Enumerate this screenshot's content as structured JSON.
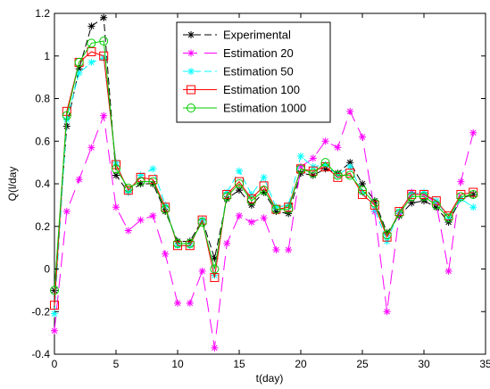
{
  "chart_data": {
    "type": "line",
    "xlabel": "t(day)",
    "ylabel": "Q(l/day",
    "xlim": [
      0,
      35
    ],
    "ylim": [
      -0.4,
      1.2
    ],
    "xticks": [
      0,
      5,
      10,
      15,
      20,
      25,
      30,
      35
    ],
    "yticks": [
      -0.4,
      -0.2,
      0,
      0.2,
      0.4,
      0.6,
      0.8,
      1,
      1.2
    ],
    "xtick_labels": [
      "0",
      "5",
      "10",
      "15",
      "20",
      "25",
      "30",
      "35"
    ],
    "ytick_labels": [
      "-0.4",
      "-0.2",
      "0",
      "0.2",
      "0.4",
      "0.6",
      "0.8",
      "1",
      "1.2"
    ],
    "grid": false,
    "legend_position": "top-center",
    "x": [
      0,
      1,
      2,
      3,
      4,
      5,
      6,
      7,
      8,
      9,
      10,
      11,
      12,
      13,
      14,
      15,
      16,
      17,
      18,
      19,
      20,
      21,
      22,
      23,
      24,
      25,
      26,
      27,
      28,
      29,
      30,
      31,
      32,
      33,
      34
    ],
    "series": [
      {
        "name": "Experimental",
        "color": "#000000",
        "marker": "asterisk",
        "dash": "8,4",
        "values": [
          -0.1,
          0.67,
          0.94,
          1.14,
          1.18,
          0.44,
          0.36,
          0.4,
          0.4,
          0.27,
          0.13,
          0.13,
          0.23,
          0.05,
          0.33,
          0.37,
          0.3,
          0.36,
          0.27,
          0.26,
          0.45,
          0.44,
          0.47,
          0.45,
          0.5,
          0.4,
          0.32,
          0.17,
          0.25,
          0.31,
          0.32,
          0.29,
          0.22,
          0.33,
          0.35
        ]
      },
      {
        "name": "Estimation 20",
        "color": "#ff00ff",
        "marker": "asterisk",
        "dash": "16,8",
        "values": [
          -0.29,
          0.27,
          0.42,
          0.57,
          0.72,
          0.29,
          0.18,
          0.23,
          0.25,
          0.07,
          -0.16,
          -0.16,
          -0.01,
          -0.37,
          0.12,
          0.25,
          0.22,
          0.24,
          0.09,
          0.09,
          0.48,
          0.52,
          0.6,
          0.57,
          0.74,
          0.62,
          0.27,
          -0.2,
          0.26,
          0.36,
          0.35,
          0.31,
          -0.01,
          0.41,
          0.64
        ]
      },
      {
        "name": "Estimation 50",
        "color": "#00ffff",
        "marker": "asterisk",
        "dash": "8,4",
        "values": [
          -0.21,
          0.7,
          0.92,
          0.97,
          0.99,
          0.5,
          0.36,
          0.44,
          0.47,
          0.3,
          0.11,
          0.11,
          0.23,
          -0.03,
          0.36,
          0.46,
          0.35,
          0.43,
          0.29,
          0.3,
          0.53,
          0.48,
          0.49,
          0.44,
          0.48,
          0.36,
          0.28,
          0.13,
          0.27,
          0.35,
          0.36,
          0.32,
          0.24,
          0.33,
          0.29
        ]
      },
      {
        "name": "Estimation 100",
        "color": "#ff0000",
        "marker": "square",
        "dash": "",
        "values": [
          -0.17,
          0.74,
          0.97,
          1.02,
          1.0,
          0.49,
          0.37,
          0.43,
          0.42,
          0.29,
          0.11,
          0.11,
          0.23,
          -0.04,
          0.35,
          0.41,
          0.33,
          0.39,
          0.28,
          0.29,
          0.47,
          0.46,
          0.48,
          0.43,
          0.45,
          0.35,
          0.3,
          0.15,
          0.27,
          0.35,
          0.35,
          0.32,
          0.25,
          0.35,
          0.36
        ]
      },
      {
        "name": "Estimation 1000",
        "color": "#00cc00",
        "marker": "circle",
        "dash": "",
        "values": [
          -0.1,
          0.72,
          0.97,
          1.06,
          1.07,
          0.47,
          0.38,
          0.41,
          0.41,
          0.28,
          0.12,
          0.12,
          0.22,
          0.0,
          0.34,
          0.4,
          0.32,
          0.37,
          0.28,
          0.28,
          0.47,
          0.45,
          0.5,
          0.44,
          0.44,
          0.37,
          0.31,
          0.16,
          0.26,
          0.34,
          0.34,
          0.3,
          0.24,
          0.34,
          0.35
        ]
      }
    ]
  }
}
